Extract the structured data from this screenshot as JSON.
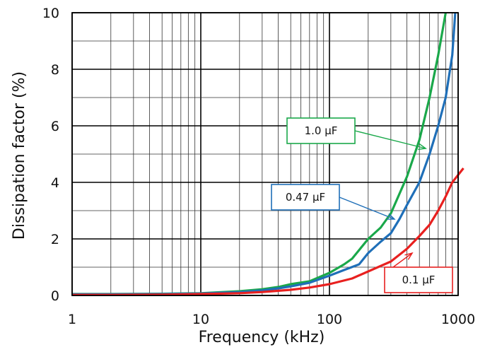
{
  "chart_data": {
    "type": "line",
    "title": "",
    "xlabel": "Frequency (kHz)",
    "ylabel": "Dissipation factor (%)",
    "xscale": "log",
    "xlim": [
      1,
      1000
    ],
    "ylim": [
      0,
      10
    ],
    "x_ticks": [
      1,
      10,
      100,
      1000
    ],
    "x_tick_labels": [
      "1",
      "10",
      "100",
      "1000"
    ],
    "y_ticks": [
      0,
      2,
      4,
      6,
      8,
      10
    ],
    "y_tick_labels": [
      "0",
      "2",
      "4",
      "6",
      "8",
      "10"
    ],
    "grid": true,
    "series": [
      {
        "name": "1.0 μF",
        "color": "#1aa84a",
        "points": [
          [
            1,
            0.05
          ],
          [
            2,
            0.05
          ],
          [
            5,
            0.06
          ],
          [
            10,
            0.08
          ],
          [
            20,
            0.15
          ],
          [
            30,
            0.22
          ],
          [
            40,
            0.3
          ],
          [
            50,
            0.4
          ],
          [
            70,
            0.5
          ],
          [
            100,
            0.8
          ],
          [
            130,
            1.1
          ],
          [
            150,
            1.3
          ],
          [
            200,
            2.0
          ],
          [
            250,
            2.4
          ],
          [
            300,
            2.9
          ],
          [
            400,
            4.2
          ],
          [
            500,
            5.5
          ],
          [
            600,
            7.0
          ],
          [
            700,
            8.5
          ],
          [
            800,
            10.0
          ]
        ]
      },
      {
        "name": "0.47 μF",
        "color": "#1f6fb8",
        "points": [
          [
            1,
            0.04
          ],
          [
            2,
            0.04
          ],
          [
            5,
            0.05
          ],
          [
            10,
            0.07
          ],
          [
            20,
            0.12
          ],
          [
            30,
            0.18
          ],
          [
            40,
            0.25
          ],
          [
            50,
            0.32
          ],
          [
            70,
            0.45
          ],
          [
            100,
            0.7
          ],
          [
            130,
            0.9
          ],
          [
            170,
            1.1
          ],
          [
            200,
            1.5
          ],
          [
            250,
            1.9
          ],
          [
            300,
            2.2
          ],
          [
            350,
            2.7
          ],
          [
            400,
            3.2
          ],
          [
            500,
            4.0
          ],
          [
            600,
            5.0
          ],
          [
            700,
            6.0
          ],
          [
            800,
            7.0
          ],
          [
            900,
            8.5
          ],
          [
            950,
            10.0
          ]
        ]
      },
      {
        "name": "0.1 μF",
        "color": "#e8201f",
        "points": [
          [
            1,
            0.02
          ],
          [
            2,
            0.02
          ],
          [
            5,
            0.03
          ],
          [
            10,
            0.05
          ],
          [
            20,
            0.08
          ],
          [
            30,
            0.12
          ],
          [
            50,
            0.2
          ],
          [
            70,
            0.28
          ],
          [
            100,
            0.4
          ],
          [
            150,
            0.6
          ],
          [
            200,
            0.85
          ],
          [
            300,
            1.2
          ],
          [
            400,
            1.65
          ],
          [
            500,
            2.1
          ],
          [
            600,
            2.5
          ],
          [
            700,
            3.0
          ],
          [
            800,
            3.5
          ],
          [
            900,
            4.0
          ],
          [
            1100,
            4.5
          ]
        ]
      }
    ],
    "annotations": [
      {
        "text": "1.0 μF",
        "series": 0,
        "color": "#1aa84a",
        "target_x": 560,
        "target_y": 5.2
      },
      {
        "text": "0.47 μF",
        "series": 1,
        "color": "#1f6fb8",
        "target_x": 320,
        "target_y": 2.7
      },
      {
        "text": "0.1 μF",
        "series": 2,
        "color": "#e8201f",
        "target_x": 440,
        "target_y": 1.5
      }
    ]
  }
}
